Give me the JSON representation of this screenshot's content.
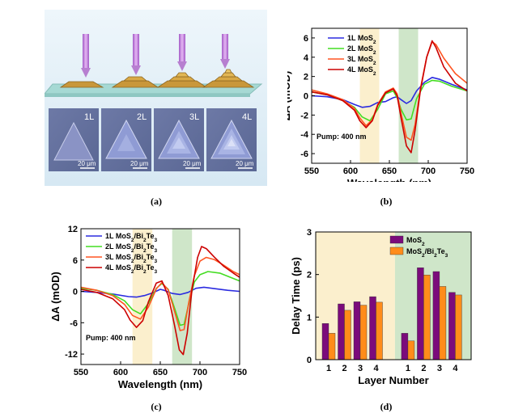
{
  "captions": {
    "a": "(a)",
    "b": "(b)",
    "c": "(c)",
    "d": "(d)"
  },
  "panel_a": {
    "tile_labels": [
      "1L",
      "2L",
      "3L",
      "4L"
    ],
    "scale_bar": "20 μm"
  },
  "colors": {
    "s1": "#2b2be0",
    "s2": "#44dd22",
    "s3": "#ff5522",
    "s4": "#cc0000",
    "band_yellow": "#fbefcd",
    "band_green": "#cfe6c9",
    "bar_mos2": "#7b0b7b",
    "bar_het": "#ff8c1a"
  },
  "chart_data": [
    {
      "id": "b",
      "type": "line",
      "xlabel": "Wavelength (nm)",
      "ylabel": "ΔA (mOD)",
      "xlim": [
        550,
        750
      ],
      "ylim": [
        -7,
        7
      ],
      "xticks": [
        550,
        600,
        650,
        700,
        750
      ],
      "yticks": [
        -6,
        -4,
        -2,
        0,
        2,
        4,
        6
      ],
      "annotation": "Pump: 400 nm",
      "bands": [
        [
          612,
          637
        ],
        [
          662,
          687
        ]
      ],
      "legend_position": "top-left",
      "series": [
        {
          "name": "1L MoS",
          "sub": "2",
          "color": "#2b2be0",
          "x": [
            550,
            570,
            590,
            605,
            615,
            625,
            635,
            645,
            655,
            660,
            665,
            672,
            678,
            685,
            695,
            705,
            715,
            730,
            750
          ],
          "y": [
            0,
            -0.1,
            -0.4,
            -0.9,
            -1.2,
            -1.1,
            -0.7,
            -0.6,
            -0.2,
            -0.1,
            -0.4,
            -0.8,
            -0.5,
            0.5,
            1.4,
            1.9,
            1.7,
            1.2,
            0.6
          ]
        },
        {
          "name": "2L MoS",
          "sub": "2",
          "color": "#44dd22",
          "x": [
            550,
            570,
            590,
            605,
            615,
            625,
            635,
            645,
            655,
            660,
            665,
            672,
            678,
            685,
            695,
            705,
            715,
            730,
            750
          ],
          "y": [
            0.4,
            0.1,
            -0.5,
            -1.2,
            -2.2,
            -2.6,
            -1.4,
            0.2,
            0.5,
            -0.2,
            -1.4,
            -2.5,
            -2.4,
            -0.3,
            1.2,
            1.6,
            1.5,
            1.0,
            0.5
          ]
        },
        {
          "name": "3L MoS",
          "sub": "2",
          "color": "#ff5522",
          "x": [
            550,
            570,
            590,
            605,
            612,
            620,
            628,
            635,
            645,
            655,
            660,
            665,
            672,
            678,
            683,
            690,
            698,
            705,
            710,
            720,
            735,
            750
          ],
          "y": [
            0.6,
            0.2,
            -0.4,
            -1.3,
            -2.3,
            -3.1,
            -2.5,
            -0.9,
            0.4,
            0.8,
            0.2,
            -1.8,
            -4.3,
            -4.6,
            -3.0,
            0.8,
            4.0,
            5.6,
            5.3,
            3.9,
            2.3,
            1.3
          ]
        },
        {
          "name": "4L MoS",
          "sub": "2",
          "color": "#cc0000",
          "x": [
            550,
            570,
            590,
            605,
            612,
            620,
            628,
            635,
            645,
            655,
            660,
            665,
            672,
            678,
            683,
            690,
            698,
            705,
            710,
            720,
            735,
            750
          ],
          "y": [
            0.4,
            0.1,
            -0.5,
            -1.5,
            -2.6,
            -3.3,
            -2.6,
            -1.0,
            0.3,
            0.7,
            0.0,
            -2.3,
            -5.2,
            -5.9,
            -3.6,
            0.6,
            4.0,
            5.7,
            5.0,
            3.0,
            1.3,
            0.5
          ]
        }
      ]
    },
    {
      "id": "c",
      "type": "line",
      "xlabel": "Wavelength (nm)",
      "ylabel": "ΔA (mOD)",
      "xlim": [
        550,
        750
      ],
      "ylim": [
        -14,
        12
      ],
      "xticks": [
        550,
        600,
        650,
        700,
        750
      ],
      "yticks": [
        -12,
        -6,
        0,
        6,
        12
      ],
      "annotation": "Pump: 400 nm",
      "bands": [
        [
          615,
          640
        ],
        [
          665,
          690
        ]
      ],
      "legend_position": "top-left",
      "series": [
        {
          "name": "1L MoS",
          "sub": "2",
          "suffix": "/Bi",
          "sub2": "2",
          "suffix2": "Te",
          "sub3": "3",
          "color": "#2b2be0",
          "x": [
            550,
            570,
            590,
            610,
            620,
            630,
            640,
            650,
            655,
            665,
            675,
            685,
            695,
            705,
            720,
            735,
            750
          ],
          "y": [
            0,
            -0.2,
            -0.5,
            -1.0,
            -1.1,
            -0.8,
            -0.3,
            0.4,
            0.2,
            -0.4,
            -0.6,
            -0.2,
            0.6,
            0.8,
            0.5,
            0.2,
            0
          ]
        },
        {
          "name": "2L MoS",
          "sub": "2",
          "suffix": "/Bi",
          "sub2": "2",
          "suffix2": "Te",
          "sub3": "3",
          "color": "#44dd22",
          "x": [
            550,
            570,
            590,
            605,
            615,
            625,
            635,
            645,
            652,
            660,
            668,
            675,
            680,
            686,
            693,
            700,
            710,
            725,
            740,
            750
          ],
          "y": [
            0.6,
            0.2,
            -0.6,
            -1.8,
            -3.5,
            -4.3,
            -2.3,
            0.6,
            1.5,
            0.4,
            -3.2,
            -6.5,
            -6.3,
            -2.3,
            1.8,
            3.2,
            3.8,
            3.5,
            2.6,
            2.0
          ]
        },
        {
          "name": "3L MoS",
          "sub": "2",
          "suffix": "/Bi",
          "sub2": "2",
          "suffix2": "Te",
          "sub3": "3",
          "color": "#ff5522",
          "x": [
            550,
            570,
            590,
            605,
            615,
            625,
            635,
            645,
            652,
            660,
            668,
            675,
            680,
            686,
            693,
            700,
            708,
            718,
            730,
            742,
            750
          ],
          "y": [
            0.8,
            0.2,
            -0.8,
            -2.5,
            -4.6,
            -5.3,
            -3.0,
            0.5,
            1.7,
            0.3,
            -3.8,
            -7.5,
            -7.3,
            -2.0,
            3.0,
            5.8,
            6.5,
            6.1,
            5.0,
            3.8,
            3.2
          ]
        },
        {
          "name": "4L MoS",
          "sub": "2",
          "suffix": "/Bi",
          "sub2": "2",
          "suffix2": "Te",
          "sub3": "3",
          "color": "#cc0000",
          "x": [
            550,
            570,
            590,
            605,
            612,
            620,
            628,
            635,
            645,
            652,
            660,
            668,
            674,
            679,
            684,
            690,
            697,
            702,
            708,
            718,
            730,
            742,
            750
          ],
          "y": [
            0.4,
            -0.2,
            -1.4,
            -3.5,
            -5.5,
            -6.9,
            -5.6,
            -2.0,
            1.6,
            2.0,
            -0.8,
            -6.5,
            -11.2,
            -12.1,
            -8.0,
            0.4,
            6.5,
            8.6,
            8.2,
            6.6,
            4.8,
            3.5,
            2.7
          ]
        }
      ]
    },
    {
      "id": "d",
      "type": "bar",
      "xlabel": "Layer Number",
      "ylabel": "Delay Time (ps)",
      "ylim": [
        0,
        3
      ],
      "yticks": [
        0,
        1,
        2,
        3
      ],
      "groups": [
        {
          "categories": [
            "1",
            "2",
            "3",
            "4"
          ],
          "band": "yellow",
          "MoS2": [
            0.85,
            1.31,
            1.36,
            1.48
          ],
          "MoS2_Bi2Te3": [
            0.62,
            1.16,
            1.28,
            1.35
          ]
        },
        {
          "categories": [
            "1",
            "2",
            "3",
            "4"
          ],
          "band": "green",
          "MoS2": [
            0.62,
            2.16,
            2.07,
            1.58
          ],
          "MoS2_Bi2Te3": [
            0.44,
            1.99,
            1.72,
            1.52
          ]
        }
      ],
      "legend_position": "top-right",
      "series": [
        {
          "name": "MoS",
          "sub": "2",
          "color": "#7b0b7b"
        },
        {
          "name": "MoS",
          "sub": "2",
          "suffix": "/Bi",
          "sub2": "2",
          "suffix2": "Te",
          "sub3": "3",
          "color": "#ff8c1a"
        }
      ]
    }
  ]
}
